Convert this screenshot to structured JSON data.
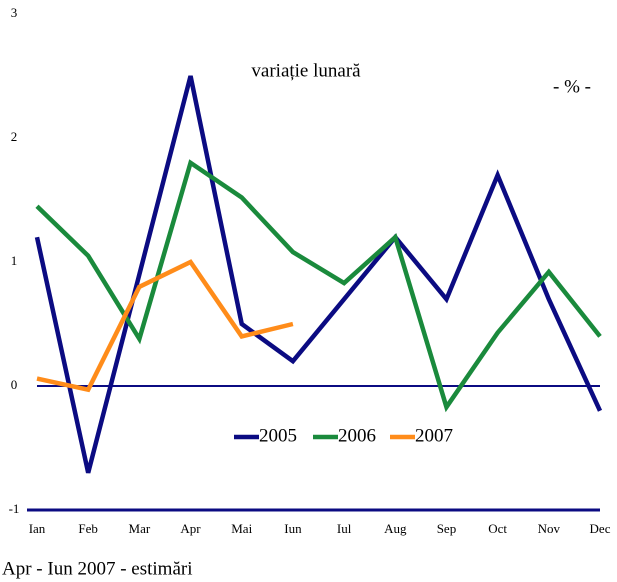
{
  "chart_data": {
    "type": "line",
    "subtitle": "variație lunară",
    "unit_label": "- % -",
    "footnote": "Apr - Iun 2007 - estimări",
    "categories": [
      "Ian",
      "Feb",
      "Mar",
      "Apr",
      "Mai",
      "Iun",
      "Iul",
      "Aug",
      "Sep",
      "Oct",
      "Nov",
      "Dec"
    ],
    "series": [
      {
        "name": "2005",
        "color": "#0b0b82",
        "values": [
          1.2,
          -0.7,
          0.9,
          2.5,
          0.5,
          0.2,
          0.7,
          1.2,
          0.7,
          1.7,
          0.7,
          -0.2
        ]
      },
      {
        "name": "2006",
        "color": "#1a8a3c",
        "values": [
          1.45,
          1.05,
          0.38,
          1.8,
          1.52,
          1.08,
          0.83,
          1.2,
          -0.17,
          0.43,
          0.92,
          0.4
        ]
      },
      {
        "name": "2007",
        "color": "#ff8c1a",
        "values": [
          0.06,
          -0.03,
          0.8,
          1.0,
          0.4,
          0.5,
          null,
          null,
          null,
          null,
          null,
          null
        ]
      }
    ],
    "ylim": [
      -1,
      3
    ],
    "yticks": [
      -1,
      0,
      1,
      2,
      3
    ],
    "grid": false
  }
}
